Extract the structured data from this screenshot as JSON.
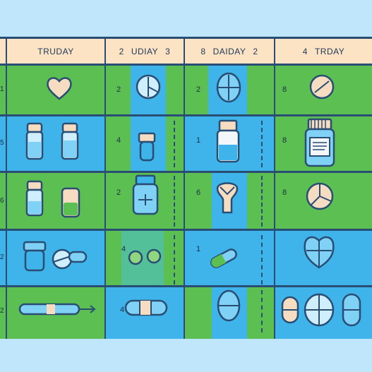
{
  "header": {
    "cols": [
      {
        "prefix": "",
        "label": "TRUDAY",
        "suffix": ""
      },
      {
        "prefix": "2",
        "label": "UDIAY",
        "suffix": "3"
      },
      {
        "prefix": "8",
        "label": "DAIDAY",
        "suffix": "2"
      },
      {
        "prefix": "4",
        "label": "TRDAY",
        "suffix": ""
      }
    ]
  },
  "side_labels": [
    "1",
    "5",
    "6",
    "2",
    "2"
  ],
  "row_numbers": {
    "r1": [
      "2",
      "2",
      "8"
    ],
    "r2": [
      "4",
      "1",
      "8"
    ],
    "r3": [
      "2",
      "6",
      "8"
    ],
    "r4": [
      "4",
      "1",
      ""
    ],
    "r5": [
      "4",
      "",
      ""
    ]
  },
  "colors": {
    "green": "#5bbf52",
    "blue": "#3eb4ea",
    "header": "#fbe3c3",
    "ink": "#2a4d74",
    "cream": "#f6dcc0"
  }
}
